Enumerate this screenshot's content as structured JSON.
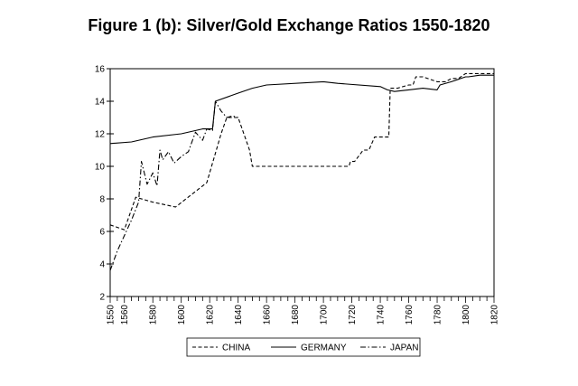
{
  "chart_data": {
    "type": "line",
    "title": "Figure 1 (b): Silver/Gold Exchange Ratios 1550-1820",
    "xlim": [
      1550,
      1820
    ],
    "ylim": [
      2,
      16
    ],
    "y_ticks": [
      2,
      4,
      6,
      8,
      10,
      12,
      14,
      16
    ],
    "x_ticks": [
      1550,
      1560,
      1580,
      1600,
      1620,
      1640,
      1660,
      1680,
      1700,
      1720,
      1740,
      1760,
      1780,
      1800,
      1820
    ],
    "grid": false,
    "legend_position": "bottom",
    "series": [
      {
        "name": "CHINA",
        "dash": "dashed",
        "x": [
          1550,
          1560,
          1568,
          1580,
          1596,
          1618,
          1628,
          1632,
          1640,
          1648,
          1650,
          1680,
          1700,
          1705,
          1710,
          1718,
          1719,
          1722,
          1728,
          1732,
          1736,
          1740,
          1746,
          1747,
          1752,
          1760,
          1763,
          1765,
          1770,
          1780,
          1786,
          1790,
          1795,
          1800,
          1820
        ],
        "y": [
          6.4,
          6.1,
          8.1,
          7.8,
          7.5,
          9.0,
          12.0,
          13.0,
          13.0,
          11.0,
          10.0,
          10.0,
          10.0,
          10.0,
          10.0,
          10.0,
          10.3,
          10.3,
          11.0,
          11.0,
          11.8,
          11.8,
          11.8,
          14.8,
          14.8,
          15.0,
          15.0,
          15.5,
          15.5,
          15.2,
          15.2,
          15.4,
          15.4,
          15.7,
          15.7
        ]
      },
      {
        "name": "GERMANY",
        "dash": "solid",
        "x": [
          1550,
          1565,
          1580,
          1600,
          1615,
          1622,
          1624,
          1640,
          1650,
          1660,
          1700,
          1710,
          1740,
          1745,
          1750,
          1760,
          1770,
          1780,
          1782,
          1790,
          1800,
          1802,
          1810,
          1820
        ],
        "y": [
          11.4,
          11.5,
          11.8,
          12.0,
          12.3,
          12.3,
          14.0,
          14.5,
          14.8,
          15.0,
          15.2,
          15.1,
          14.9,
          14.7,
          14.6,
          14.7,
          14.8,
          14.7,
          15.0,
          15.2,
          15.5,
          15.5,
          15.6,
          15.6
        ]
      },
      {
        "name": "JAPAN",
        "dash": "dashdot",
        "x": [
          1550,
          1555,
          1565,
          1570,
          1572,
          1576,
          1580,
          1583,
          1585,
          1587,
          1591,
          1595,
          1600,
          1605,
          1610,
          1615,
          1618,
          1622,
          1624,
          1628,
          1632,
          1636,
          1640
        ],
        "y": [
          3.6,
          4.8,
          6.7,
          7.8,
          10.3,
          8.9,
          9.6,
          8.8,
          11.0,
          10.4,
          10.9,
          10.2,
          10.6,
          10.9,
          12.1,
          11.6,
          12.3,
          12.2,
          14.0,
          13.4,
          13.0,
          13.1,
          13.0
        ]
      }
    ]
  }
}
